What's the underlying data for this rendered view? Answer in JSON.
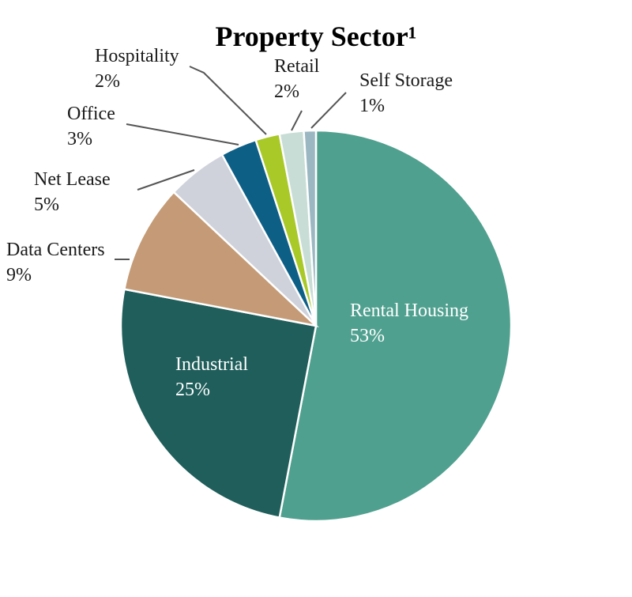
{
  "chart_data": {
    "type": "pie",
    "title": "Property Sector¹",
    "slices": [
      {
        "label": "Rental Housing",
        "value": 53,
        "display": "53%",
        "color": "#4fa08f"
      },
      {
        "label": "Industrial",
        "value": 25,
        "display": "25%",
        "color": "#1f5e5b"
      },
      {
        "label": "Data Centers",
        "value": 9,
        "display": "9%",
        "color": "#c49b76"
      },
      {
        "label": "Net Lease",
        "value": 5,
        "display": "5%",
        "color": "#cfd2da"
      },
      {
        "label": "Office",
        "value": 3,
        "display": "3%",
        "color": "#0e5f86"
      },
      {
        "label": "Hospitality",
        "value": 2,
        "display": "2%",
        "color": "#a8c927"
      },
      {
        "label": "Retail",
        "value": 2,
        "display": "2%",
        "color": "#c8ddd6"
      },
      {
        "label": "Self Storage",
        "value": 1,
        "display": "1%",
        "color": "#9ab7c2"
      }
    ],
    "start_angle": "12 o'clock",
    "direction": "clockwise"
  }
}
